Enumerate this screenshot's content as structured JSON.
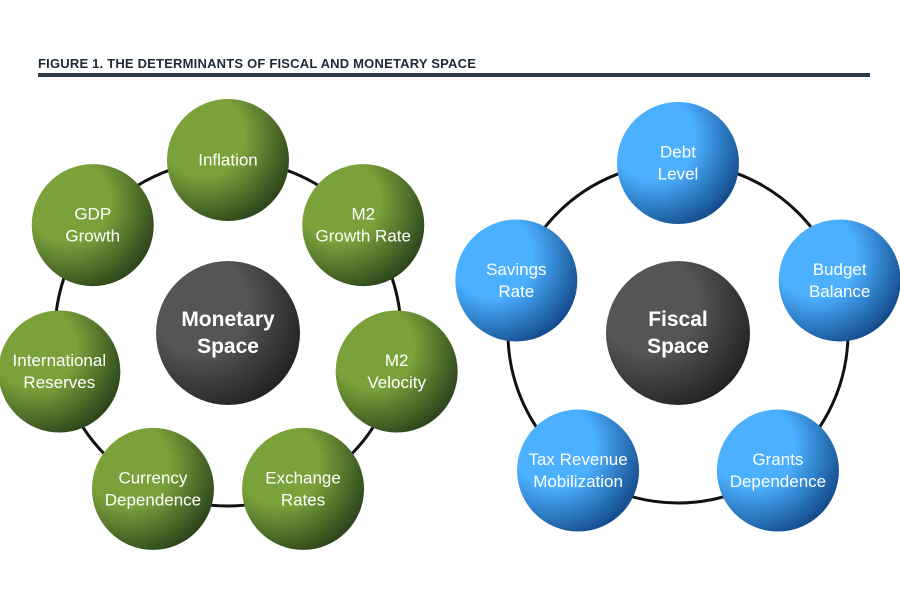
{
  "title": "FIGURE 1.  THE DETERMINANTS OF FISCAL AND MONETARY SPACE",
  "colors": {
    "green_light": "#7aa13a",
    "green_dark": "#1e3516",
    "blue_light": "#4bb0ff",
    "blue_dark": "#0a3a78",
    "hub_light": "#555555",
    "hub_dark": "#1a1a1a",
    "ring": "#111111"
  },
  "monetary": {
    "hub": [
      "Monetary",
      "Space"
    ],
    "nodes": [
      {
        "id": "inflation",
        "lines": [
          "Inflation"
        ]
      },
      {
        "id": "m2-growth-rate",
        "lines": [
          "M2",
          "Growth Rate"
        ]
      },
      {
        "id": "m2-velocity",
        "lines": [
          "M2",
          "Velocity"
        ]
      },
      {
        "id": "exchange-rates",
        "lines": [
          "Exchange",
          "Rates"
        ]
      },
      {
        "id": "currency-dependence",
        "lines": [
          "Currency",
          "Dependence"
        ]
      },
      {
        "id": "international-reserves",
        "lines": [
          "International",
          "Reserves"
        ]
      },
      {
        "id": "gdp-growth",
        "lines": [
          "GDP",
          "Growth"
        ]
      }
    ]
  },
  "fiscal": {
    "hub": [
      "Fiscal",
      "Space"
    ],
    "nodes": [
      {
        "id": "debt-level",
        "lines": [
          "Debt",
          "Level"
        ]
      },
      {
        "id": "budget-balance",
        "lines": [
          "Budget",
          "Balance"
        ]
      },
      {
        "id": "grants-dependence",
        "lines": [
          "Grants",
          "Dependence"
        ]
      },
      {
        "id": "tax-revenue-mobilization",
        "lines": [
          "Tax Revenue",
          "Mobilization"
        ]
      },
      {
        "id": "savings-rate",
        "lines": [
          "Savings",
          "Rate"
        ]
      }
    ]
  }
}
